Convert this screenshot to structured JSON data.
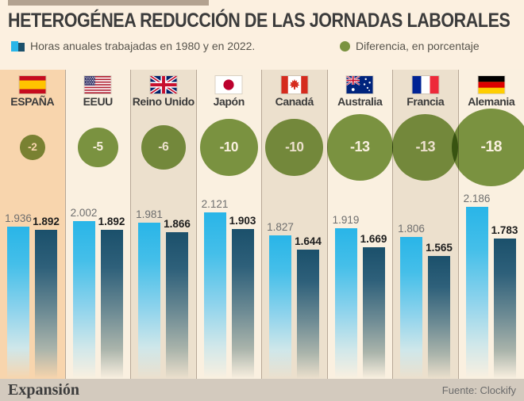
{
  "title": "HETEROGÉNEA REDUCCIÓN DE LAS JORNADAS LABORALES",
  "legend": {
    "bars_label": "Horas anuales trabajadas en 1980 y en 2022.",
    "circle_label": "Diferencia, en porcentaje"
  },
  "footer": {
    "brand": "Expansión",
    "source": "Fuente: Clockify"
  },
  "colors": {
    "bar_1980": "#29b5e8",
    "bar_2022": "#1b506b",
    "difference_circle": "#7a9240",
    "highlight_column": "#f8d5ad",
    "column_cream": "#faf0e0",
    "column_beige": "#ece0cd",
    "footer_bg": "#d3cabe",
    "topbar": "#b3a290"
  },
  "chart_data": {
    "type": "bar",
    "title": "HETEROGÉNEA REDUCCIÓN DE LAS JORNADAS LABORALES",
    "categories": [
      "ESPAÑA",
      "EEUU",
      "Reino Unido",
      "Japón",
      "Canadá",
      "Australia",
      "Francia",
      "Alemania"
    ],
    "series": [
      {
        "name": "Horas anuales trabajadas en 1980",
        "values": [
          1936,
          2002,
          1981,
          2121,
          1827,
          1919,
          1806,
          2186
        ]
      },
      {
        "name": "Horas anuales trabajadas en 2022",
        "values": [
          1892,
          1892,
          1866,
          1903,
          1644,
          1669,
          1565,
          1783
        ]
      }
    ],
    "difference_pct": [
      -2,
      -5,
      -6,
      -10,
      -10,
      -13,
      -13,
      -18
    ],
    "ylabel": "Horas anuales trabajadas",
    "xlabel": "",
    "ylim": [
      0,
      2200
    ],
    "grid": false,
    "legend_position": "top"
  },
  "columns": [
    {
      "country": "ESPAÑA",
      "flag": "spain",
      "label_1980": "1.936",
      "label_2022": "1.892",
      "diff_label": "-2",
      "highlight": true
    },
    {
      "country": "EEUU",
      "flag": "usa",
      "label_1980": "2.002",
      "label_2022": "1.892",
      "diff_label": "-5",
      "highlight": false
    },
    {
      "country": "Reino Unido",
      "flag": "uk",
      "label_1980": "1.981",
      "label_2022": "1.866",
      "diff_label": "-6",
      "highlight": false
    },
    {
      "country": "Japón",
      "flag": "japan",
      "label_1980": "2.121",
      "label_2022": "1.903",
      "diff_label": "-10",
      "highlight": false
    },
    {
      "country": "Canadá",
      "flag": "canada",
      "label_1980": "1.827",
      "label_2022": "1.644",
      "diff_label": "-10",
      "highlight": false
    },
    {
      "country": "Australia",
      "flag": "australia",
      "label_1980": "1.919",
      "label_2022": "1.669",
      "diff_label": "-13",
      "highlight": false
    },
    {
      "country": "Francia",
      "flag": "france",
      "label_1980": "1.806",
      "label_2022": "1.565",
      "diff_label": "-13",
      "highlight": false
    },
    {
      "country": "Alemania",
      "flag": "germany",
      "label_1980": "2.186",
      "label_2022": "1.783",
      "diff_label": "-18",
      "highlight": false
    }
  ]
}
